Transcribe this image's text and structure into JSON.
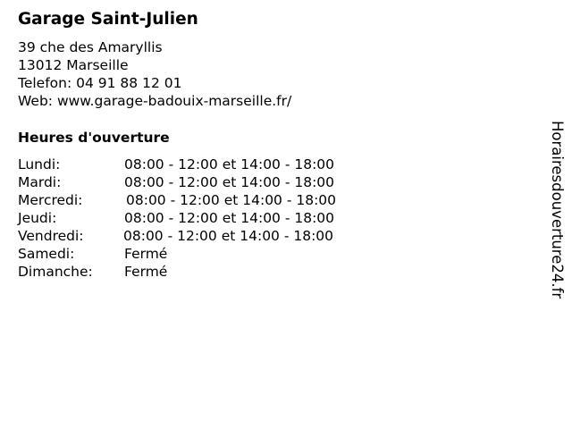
{
  "business": {
    "name": "Garage Saint-Julien",
    "address_line1": "39 che des Amaryllis",
    "address_line2": "13012 Marseille",
    "phone": "Telefon: 04 91 88 12 01",
    "web": "Web: www.garage-badouix-marseille.fr/"
  },
  "hours": {
    "heading": "Heures d'ouverture",
    "rows": [
      {
        "day": "Lundi:",
        "time": "08:00 - 12:00 et 14:00 - 18:00"
      },
      {
        "day": "Mardi:",
        "time": "08:00 - 12:00 et 14:00 - 18:00"
      },
      {
        "day": "Mercredi:",
        "time": "08:00 - 12:00 et 14:00 - 18:00"
      },
      {
        "day": "Jeudi:",
        "time": "08:00 - 12:00 et 14:00 - 18:00"
      },
      {
        "day": "Vendredi:",
        "time": "08:00 - 12:00 et 14:00 - 18:00"
      },
      {
        "day": "Samedi:",
        "time": "Fermé"
      },
      {
        "day": "Dimanche:",
        "time": "Fermé"
      }
    ]
  },
  "watermark": "Horairesdouverture24.fr"
}
